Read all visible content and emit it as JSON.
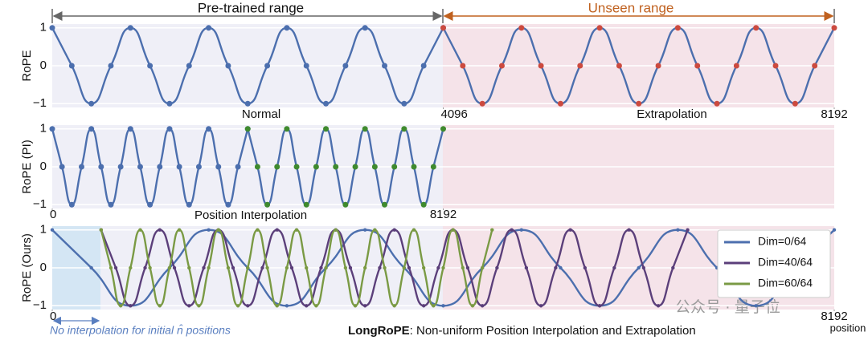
{
  "header": {
    "pretrained": "Pre-trained range",
    "unseen": "Unseen range"
  },
  "footer": {
    "note": "No interpolation for initial n̂ positions",
    "caption_bold": "LongRoPE",
    "caption": ": Non-uniform Position Interpolation and Extrapolation"
  },
  "watermark": "公众号 · 量子位",
  "chart_data": [
    {
      "type": "line",
      "ylabel": "RoPE",
      "xlim": [
        0,
        8192
      ],
      "ylim": [
        -1.1,
        1.1
      ],
      "xticks": [
        4096,
        8192
      ],
      "yticks": [
        1,
        0,
        {
          "value": -1,
          "label": "−1"
        }
      ],
      "grid": true,
      "captions": [
        "Normal",
        "Extrapolation"
      ],
      "series": [
        {
          "color": "#4c6fae",
          "marker_color": "#4c6fae",
          "x": [
            0,
            204.8,
            409.6,
            614.4,
            819.2,
            1024,
            1228.8,
            1433.6,
            1638.4,
            1843.2,
            2048,
            2252.8,
            2457.6,
            2662.4,
            2867.2,
            3072,
            3276.8,
            3481.6,
            3686.4,
            3891.2,
            4096
          ],
          "values": [
            1,
            0,
            -1,
            0,
            1,
            0,
            -1,
            0,
            1,
            0,
            -1,
            0,
            1,
            0,
            -1,
            0,
            1,
            0,
            -1,
            0,
            1
          ]
        },
        {
          "color": "#4c6fae",
          "marker_color": "#cc4a3f",
          "x": [
            4096,
            4300.8,
            4505.6,
            4710.4,
            4915.2,
            5120,
            5324.8,
            5529.6,
            5734.4,
            5939.2,
            6144,
            6348.8,
            6553.6,
            6758.4,
            6963.2,
            7168,
            7372.8,
            7577.6,
            7782.4,
            7987.2,
            8192
          ],
          "values": [
            1,
            0,
            -1,
            0,
            1,
            0,
            -1,
            0,
            1,
            0,
            -1,
            0,
            1,
            0,
            -1,
            0,
            1,
            0,
            -1,
            0,
            1
          ]
        }
      ]
    },
    {
      "type": "line",
      "ylabel": "RoPE (PI)",
      "xlim": [
        0,
        16384
      ],
      "ylim": [
        -1.1,
        1.1
      ],
      "xticks": [
        0,
        8192
      ],
      "yticks": [
        1,
        0,
        {
          "value": -1,
          "label": "−1"
        }
      ],
      "grid": true,
      "captions": [
        "Position Interpolation"
      ],
      "series": [
        {
          "color": "#4c6fae",
          "marker_color": "#4c6fae",
          "x": [
            0,
            204.8,
            409.6,
            614.4,
            819.2,
            1024,
            1228.8,
            1433.6,
            1638.4,
            1843.2,
            2048,
            2252.8,
            2457.6,
            2662.4,
            2867.2,
            3072,
            3276.8,
            3481.6,
            3686.4,
            3891.2,
            4096
          ],
          "values": [
            1,
            0,
            -1,
            0,
            1,
            0,
            -1,
            0,
            1,
            0,
            -1,
            0,
            1,
            0,
            -1,
            0,
            1,
            0,
            -1,
            0,
            1
          ]
        },
        {
          "color": "#4c6fae",
          "marker_color": "#3f8a2e",
          "x": [
            4096,
            4300.8,
            4505.6,
            4710.4,
            4915.2,
            5120,
            5324.8,
            5529.6,
            5734.4,
            5939.2,
            6144,
            6348.8,
            6553.6,
            6758.4,
            6963.2,
            7168,
            7372.8,
            7577.6,
            7782.4,
            7987.2,
            8192
          ],
          "values": [
            1,
            0,
            -1,
            0,
            1,
            0,
            -1,
            0,
            1,
            0,
            -1,
            0,
            1,
            0,
            -1,
            0,
            1,
            0,
            -1,
            0,
            1
          ]
        }
      ]
    },
    {
      "type": "line",
      "ylabel": "RoPE (Ours)",
      "xlabel": "position",
      "xlim": [
        0,
        8192
      ],
      "ylim": [
        -1.1,
        1.1
      ],
      "xticks": [
        0,
        8192
      ],
      "yticks": [
        1,
        0,
        {
          "value": -1,
          "label": "−1"
        }
      ],
      "grid": true,
      "captions": [],
      "legend": "upper right",
      "series": [
        {
          "name": "Dim=0/64",
          "color": "#4c6fae",
          "marker_color": "#4c6fae",
          "x": [
            0,
            409.6,
            819.2,
            1228.8,
            1638.4,
            2048,
            2457.6,
            2867.2,
            3276.8,
            3686.4,
            4096,
            4505.6,
            4915.2,
            5324.8,
            5734.4,
            6144,
            6553.6,
            6963.2,
            7372.8,
            7782.4,
            8192
          ],
          "values": [
            1,
            0,
            -1,
            0,
            1,
            0,
            -1,
            0,
            1,
            0,
            -1,
            0,
            1,
            0,
            -1,
            0,
            1,
            0,
            -1,
            0,
            1
          ]
        },
        {
          "name": "Dim=40/64",
          "color": "#5b3f7a",
          "marker_color": "#5b3f7a",
          "x": [
            512,
            665.6,
            819.2,
            972.8,
            1126.4,
            1280,
            1433.6,
            1587.2,
            1740.8,
            1894.4,
            2048,
            2201.6,
            2355.2,
            2508.8,
            2662.4,
            2816,
            2969.6,
            3123.2,
            3276.8,
            3430.4,
            3584,
            3737.6,
            3891.2,
            4044.8,
            4198.4,
            4352,
            4505.6,
            4659.2,
            4812.8,
            4966.4,
            5120,
            5273.6,
            5427.2,
            5580.8,
            5734.4,
            5888,
            6041.6,
            6195.2,
            6348.8,
            6502.4,
            6656
          ],
          "values": [
            1,
            0,
            -1,
            0,
            1,
            0,
            -1,
            0,
            1,
            0,
            -1,
            0,
            1,
            0,
            -1,
            0,
            1,
            0,
            -1,
            0,
            1,
            0,
            -1,
            0,
            1,
            0,
            -1,
            0,
            1,
            0,
            -1,
            0,
            1,
            0,
            -1,
            0,
            1,
            0,
            -1,
            0,
            1
          ]
        },
        {
          "name": "Dim=60/64",
          "color": "#7a9a44",
          "marker_color": "#7a9a44",
          "x": [
            512,
            614.4,
            716.8,
            819.2,
            921.6,
            1024,
            1126.4,
            1228.8,
            1331.2,
            1433.6,
            1536,
            1638.4,
            1740.8,
            1843.2,
            1945.6,
            2048,
            2150.4,
            2252.8,
            2355.2,
            2457.6,
            2560,
            2662.4,
            2764.8,
            2867.2,
            2969.6,
            3072,
            3174.4,
            3276.8,
            3379.2,
            3481.6,
            3584,
            3686.4,
            3788.8,
            3891.2,
            3993.6,
            4096,
            4198.4,
            4300.8,
            4403.2,
            4505.6,
            4608
          ],
          "values": [
            1,
            0,
            -1,
            0,
            1,
            0,
            -1,
            0,
            1,
            0,
            -1,
            0,
            1,
            0,
            -1,
            0,
            1,
            0,
            -1,
            0,
            1,
            0,
            -1,
            0,
            1,
            0,
            -1,
            0,
            1,
            0,
            -1,
            0,
            1,
            0,
            -1,
            0,
            1,
            0,
            -1,
            0,
            1
          ]
        }
      ]
    }
  ]
}
